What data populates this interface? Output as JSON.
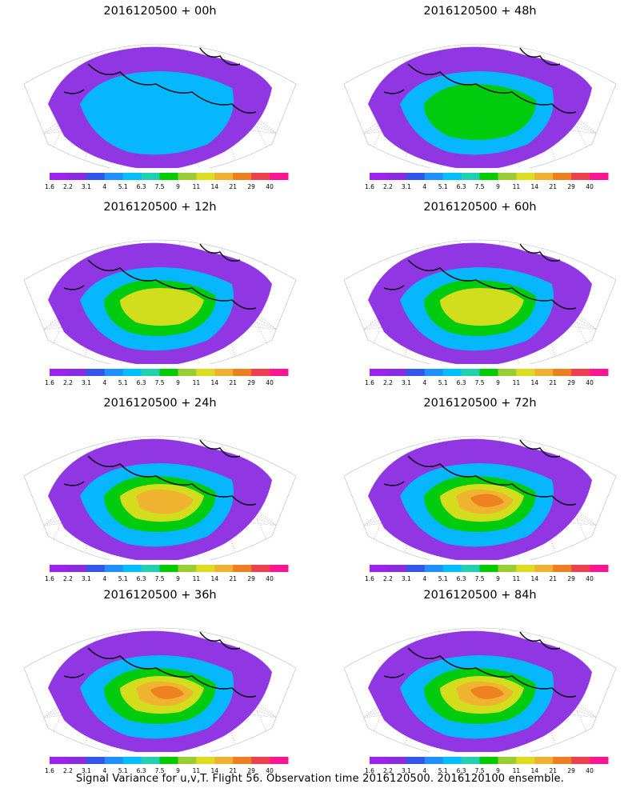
{
  "panels": [
    {
      "title": "2016120500 + 00h",
      "lead_hours": 0
    },
    {
      "title": "2016120500 + 48h",
      "lead_hours": 48
    },
    {
      "title": "2016120500 + 12h",
      "lead_hours": 12
    },
    {
      "title": "2016120500 + 60h",
      "lead_hours": 60
    },
    {
      "title": "2016120500 + 24h",
      "lead_hours": 24
    },
    {
      "title": "2016120500 + 72h",
      "lead_hours": 72
    },
    {
      "title": "2016120500 + 36h",
      "lead_hours": 36
    },
    {
      "title": "2016120500 + 84h",
      "lead_hours": 84
    }
  ],
  "colorbar": {
    "labels": [
      "1.6",
      "2.2",
      "3.1",
      "4",
      "5.1",
      "6.3",
      "7.5",
      "9",
      "11",
      "14",
      "21",
      "29",
      "40"
    ],
    "colors": [
      "#a020f0",
      "#8a2be2",
      "#3355ee",
      "#1e90ff",
      "#00bfff",
      "#20d0b0",
      "#00cc00",
      "#9acd32",
      "#dddd20",
      "#f0b030",
      "#ee7f20",
      "#f04050",
      "#ff1493"
    ]
  },
  "footer": "Signal Variance for u,v,T. Flight 56. Observation time 2016120500. 2016120100 ensemble."
}
